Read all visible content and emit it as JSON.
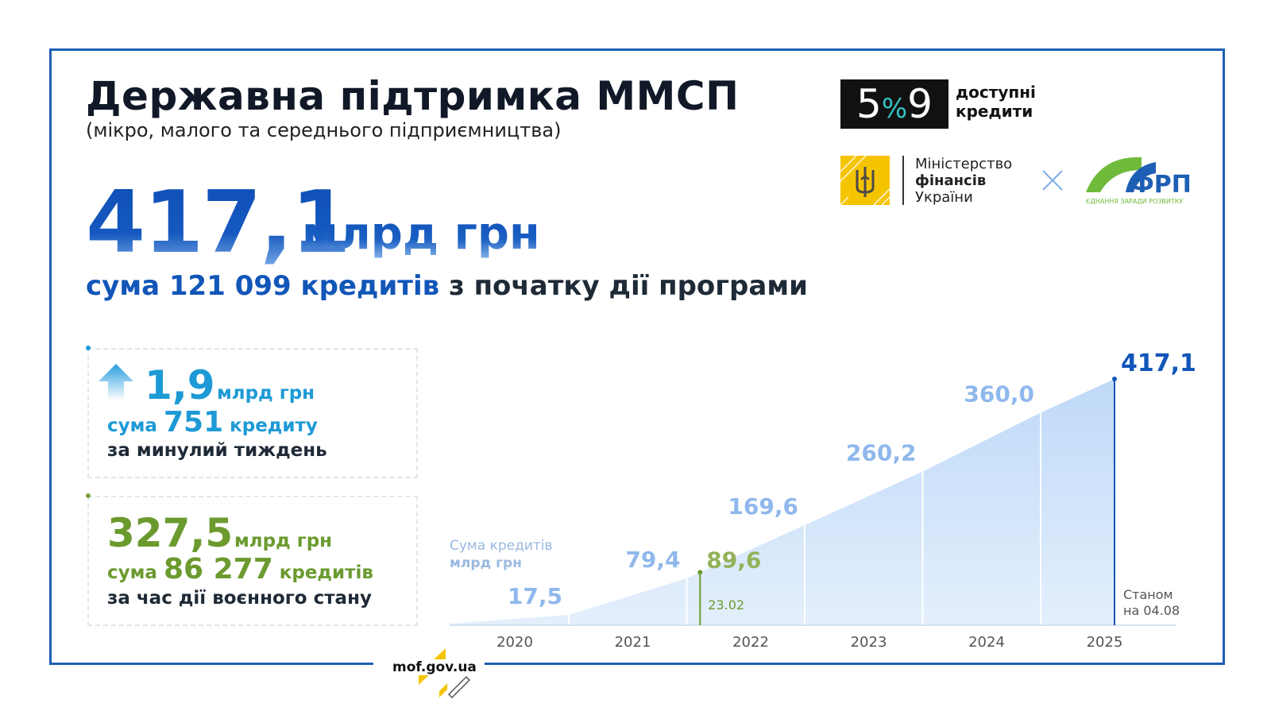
{
  "header": {
    "title": "Державна підтримка ММСП",
    "subtitle": "(мікро, малого та середнього підприємництва)"
  },
  "headline": {
    "value": "417,1",
    "unit": "млрд грн",
    "line_part1": "сума ",
    "line_count": "121 099",
    "line_part2": " кредитів",
    "line_part3": " з початку дії програми"
  },
  "logos": {
    "brand_579": {
      "left": "5",
      "middle": "%",
      "right": "9",
      "text_line1": "доступні",
      "text_line2": "кредити"
    },
    "ministry": {
      "line1": "Міністерство",
      "line2": "фінансів",
      "line3": "України"
    },
    "frp": {
      "name": "ФРП",
      "tagline": "ЄДНАННЯ ЗАРАДИ РОЗВИТКУ"
    }
  },
  "week_box": {
    "value": "1,9",
    "unit": "млрд грн",
    "line2_prefix": "сума ",
    "count": "751",
    "line2_suffix": " кредиту",
    "line3": "за минулий тиждень",
    "color": "#1d9ad6"
  },
  "war_box": {
    "value": "327,5",
    "unit": "млрд грн",
    "line2_prefix": "сума ",
    "count": "86 277",
    "line2_suffix": " кредитів",
    "line3": "за час дії воєнного стану",
    "color": "#6b9a2e"
  },
  "chart_data": {
    "type": "area",
    "caption_line1": "Сума кредитів",
    "caption_line2": "млрд грн",
    "categories": [
      "2020",
      "2021",
      "2022",
      "2023",
      "2024",
      "2025"
    ],
    "series": [
      {
        "values": [
          17.5,
          79.4,
          169.6,
          260.2,
          360.0,
          417.1
        ]
      }
    ],
    "value_labels": [
      "17,5",
      "79,4",
      "169,6",
      "260,2",
      "360,0",
      "417,1"
    ],
    "marker": {
      "value": 89.6,
      "value_label": "89,6",
      "date_label": "23.02"
    },
    "as_of_line1": "Станом",
    "as_of_line2": "на 04.08",
    "ylim": [
      0,
      417.1
    ],
    "colors": {
      "fill": "#cfe3fa",
      "labels": "#8fb8ec",
      "last": "#1156b8",
      "marker": "#6b9a2e",
      "marker_label": "#93b25a"
    }
  },
  "footer": {
    "site": "mof.gov.ua"
  }
}
